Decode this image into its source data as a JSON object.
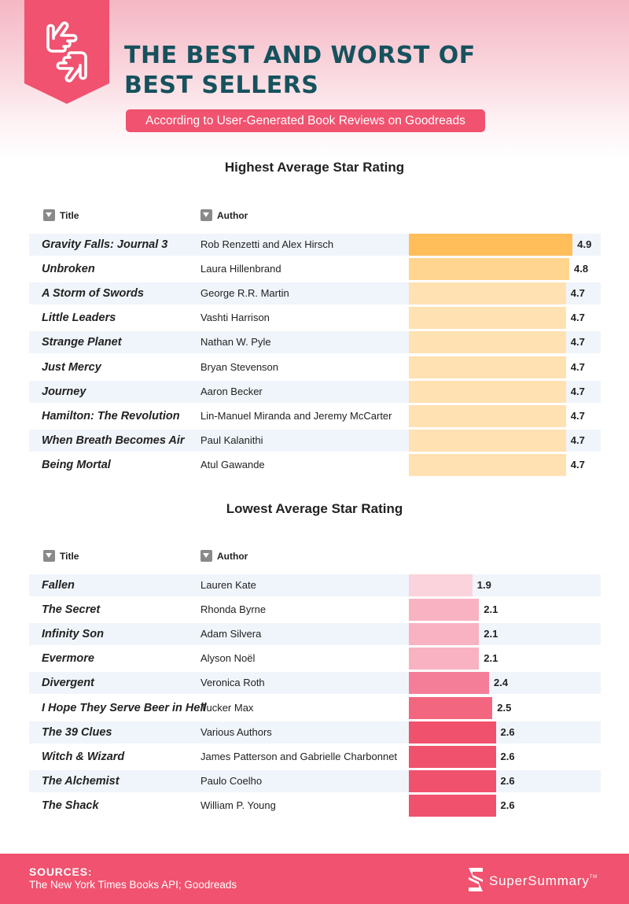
{
  "header": {
    "title_line1": "THE BEST AND WORST OF",
    "title_line2": "BEST SELLERS",
    "subtitle": "According to User-Generated Book Reviews on Goodreads"
  },
  "colors": {
    "header_title": "#16525e",
    "accent_pink": "#f0526f",
    "highest_top": "#ffbe5a",
    "highest_second": "#ffd58f",
    "highest_rest": "#ffe1b2",
    "lowest_1": "#fbd3dc",
    "lowest_2": "#f8b2c2",
    "lowest_3": "#f47d97",
    "lowest_4": "#f3667f",
    "lowest_5": "#f0516d",
    "row_alt": "#f0f5fb"
  },
  "columns": {
    "title": "Title",
    "author": "Author"
  },
  "footer": {
    "sources_label": "SOURCES:",
    "sources_text": "The New York Times Books API; Goodreads",
    "brand_name": "SuperSummary",
    "brand_tm": "TM",
    "brand_icon": "supersummary-logo-icon"
  },
  "chart_data": [
    {
      "type": "bar",
      "orientation": "horizontal",
      "title": "Highest Average Star Rating",
      "categories": [
        "Gravity Falls: Journal 3",
        "Unbroken",
        "A Storm of Swords",
        "Little Leaders",
        "Strange Planet",
        "Just Mercy",
        "Journey",
        "Hamilton: The Revolution",
        "When Breath Becomes Air",
        "Being Mortal"
      ],
      "authors": [
        "Rob Renzetti and Alex Hirsch",
        "Laura Hillenbrand",
        "George R.R. Martin",
        "Vashti Harrison",
        "Nathan W. Pyle",
        "Bryan Stevenson",
        "Aaron Becker",
        "Lin-Manuel Miranda and Jeremy McCarter",
        "Paul Kalanithi",
        "Atul Gawande"
      ],
      "values": [
        4.9,
        4.8,
        4.7,
        4.7,
        4.7,
        4.7,
        4.7,
        4.7,
        4.7,
        4.7
      ],
      "value_labels": [
        "4.9",
        "4.8",
        "4.7",
        "4.7",
        "4.7",
        "4.7",
        "4.7",
        "4.7",
        "4.7",
        "4.7"
      ],
      "bar_colors": [
        "#ffbe5a",
        "#ffd58f",
        "#ffe1b2",
        "#ffe1b2",
        "#ffe1b2",
        "#ffe1b2",
        "#ffe1b2",
        "#ffe1b2",
        "#ffe1b2",
        "#ffe1b2"
      ],
      "xlim": [
        0,
        5
      ],
      "grid": false
    },
    {
      "type": "bar",
      "orientation": "horizontal",
      "title": "Lowest Average Star Rating",
      "categories": [
        "Fallen",
        "The Secret",
        "Infinity Son",
        "Evermore",
        "Divergent",
        "I Hope They Serve Beer in Hell",
        "The 39 Clues",
        "Witch & Wizard",
        "The Alchemist",
        "The Shack"
      ],
      "authors": [
        "Lauren Kate",
        "Rhonda Byrne",
        "Adam Silvera",
        "Alyson Noël",
        "Veronica Roth",
        "Tucker Max",
        "Various Authors",
        "James Patterson and Gabrielle Charbonnet",
        "Paulo Coelho",
        "William P. Young"
      ],
      "values": [
        1.9,
        2.1,
        2.1,
        2.1,
        2.4,
        2.5,
        2.6,
        2.6,
        2.6,
        2.6
      ],
      "value_labels": [
        "1.9",
        "2.1",
        "2.1",
        "2.1",
        "2.4",
        "2.5",
        "2.6",
        "2.6",
        "2.6",
        "2.6"
      ],
      "bar_colors": [
        "#fbd3dc",
        "#f8b2c2",
        "#f8b2c2",
        "#f8b2c2",
        "#f47d97",
        "#f3667f",
        "#f0516d",
        "#f0516d",
        "#f0516d",
        "#f0516d"
      ],
      "xlim": [
        0,
        5
      ],
      "grid": false
    }
  ]
}
